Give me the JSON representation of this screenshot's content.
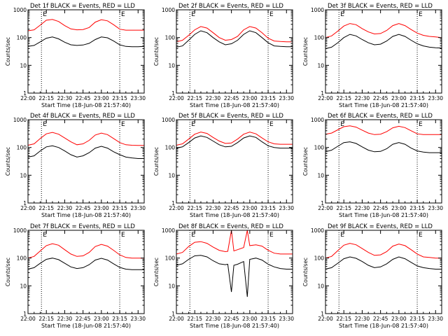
{
  "figure": {
    "xlabel": "Start Time (18-Jun-08 21:57:40)",
    "ylabel": "Counts/sec",
    "x_tick_labels": [
      "22:00",
      "22:15",
      "22:30",
      "22:45",
      "23:00",
      "23:15",
      "23:30"
    ],
    "y_tick_labels": [
      "1",
      "10",
      "100",
      "1000"
    ],
    "colors": {
      "events": "#000000",
      "lld": "#ff0000",
      "background": "#ffffff"
    }
  },
  "chart_data": [
    {
      "type": "line",
      "title": "Det 1f BLACK = Events, RED = LLD",
      "xlabel": "Start Time (18-Jun-08 21:57:40)",
      "ylabel": "Counts/sec",
      "x_unit": "minutes after 22:00",
      "xlim": [
        0,
        95
      ],
      "ylim": [
        1,
        1000
      ],
      "yscale": "log",
      "markers": [
        {
          "x": 11,
          "label": "E"
        },
        {
          "x": 75,
          "label": "E"
        }
      ],
      "series": [
        {
          "name": "Events",
          "color": "#000000",
          "x": [
            0,
            5,
            10,
            15,
            20,
            25,
            30,
            35,
            40,
            45,
            50,
            55,
            60,
            65,
            70,
            75,
            80,
            85,
            90,
            95
          ],
          "values": [
            48,
            52,
            70,
            95,
            105,
            90,
            68,
            55,
            52,
            54,
            62,
            85,
            105,
            98,
            75,
            55,
            48,
            47,
            47,
            48
          ]
        },
        {
          "name": "LLD",
          "color": "#ff0000",
          "x": [
            0,
            5,
            10,
            15,
            20,
            25,
            30,
            35,
            40,
            45,
            50,
            55,
            60,
            65,
            70,
            75,
            80,
            85,
            90,
            95
          ],
          "values": [
            175,
            190,
            280,
            420,
            450,
            380,
            270,
            205,
            190,
            195,
            230,
            360,
            440,
            400,
            290,
            200,
            185,
            185,
            185,
            185
          ]
        }
      ]
    },
    {
      "type": "line",
      "title": "Det 2f BLACK = Events, RED = LLD",
      "xlabel": "Start Time (18-Jun-08 21:57:40)",
      "ylabel": "Counts/sec",
      "x_unit": "minutes after 22:00",
      "xlim": [
        0,
        95
      ],
      "ylim": [
        1,
        1000
      ],
      "yscale": "log",
      "markers": [
        {
          "x": 11,
          "label": "E"
        },
        {
          "x": 75,
          "label": "E"
        }
      ],
      "series": [
        {
          "name": "Events",
          "color": "#000000",
          "x": [
            0,
            5,
            10,
            15,
            20,
            25,
            30,
            35,
            40,
            45,
            50,
            55,
            60,
            65,
            70,
            75,
            80,
            85,
            90,
            95
          ],
          "values": [
            45,
            50,
            80,
            130,
            175,
            150,
            100,
            70,
            55,
            60,
            80,
            130,
            175,
            150,
            100,
            65,
            50,
            48,
            47,
            47
          ]
        },
        {
          "name": "LLD",
          "color": "#ff0000",
          "x": [
            0,
            5,
            10,
            15,
            20,
            25,
            30,
            35,
            40,
            45,
            50,
            55,
            60,
            65,
            70,
            75,
            80,
            85,
            90,
            95
          ],
          "values": [
            70,
            80,
            120,
            190,
            250,
            220,
            150,
            100,
            80,
            85,
            110,
            190,
            250,
            220,
            150,
            95,
            75,
            72,
            70,
            70
          ]
        }
      ]
    },
    {
      "type": "line",
      "title": "Det 3f BLACK = Events, RED = LLD",
      "xlabel": "Start Time (18-Jun-08 21:57:40)",
      "ylabel": "Counts/sec",
      "x_unit": "minutes after 22:00",
      "xlim": [
        0,
        95
      ],
      "ylim": [
        1,
        1000
      ],
      "yscale": "log",
      "markers": [
        {
          "x": 11,
          "label": "E"
        },
        {
          "x": 75,
          "label": "E"
        }
      ],
      "series": [
        {
          "name": "Events",
          "color": "#000000",
          "x": [
            0,
            5,
            10,
            15,
            20,
            25,
            30,
            35,
            40,
            45,
            50,
            55,
            60,
            65,
            70,
            75,
            80,
            85,
            90,
            95
          ],
          "values": [
            40,
            45,
            65,
            100,
            130,
            115,
            85,
            65,
            55,
            58,
            75,
            110,
            130,
            110,
            80,
            60,
            50,
            45,
            43,
            42
          ]
        },
        {
          "name": "LLD",
          "color": "#ff0000",
          "x": [
            0,
            5,
            10,
            15,
            20,
            25,
            30,
            35,
            40,
            45,
            50,
            55,
            60,
            65,
            70,
            75,
            80,
            85,
            90,
            95
          ],
          "values": [
            100,
            115,
            170,
            260,
            320,
            290,
            210,
            160,
            135,
            140,
            180,
            270,
            320,
            270,
            195,
            145,
            120,
            110,
            105,
            100
          ]
        }
      ]
    },
    {
      "type": "line",
      "title": "Det 4f BLACK = Events, RED = LLD",
      "xlabel": "Start Time (18-Jun-08 21:57:40)",
      "ylabel": "Counts/sec",
      "x_unit": "minutes after 22:00",
      "xlim": [
        0,
        95
      ],
      "ylim": [
        1,
        1000
      ],
      "yscale": "log",
      "markers": [
        {
          "x": 11,
          "label": "E"
        },
        {
          "x": 75,
          "label": "E"
        }
      ],
      "series": [
        {
          "name": "Events",
          "color": "#000000",
          "x": [
            0,
            5,
            10,
            15,
            20,
            25,
            30,
            35,
            40,
            45,
            50,
            55,
            60,
            65,
            70,
            75,
            80,
            85,
            90,
            95
          ],
          "values": [
            45,
            50,
            75,
            105,
            115,
            100,
            75,
            55,
            45,
            50,
            65,
            95,
            110,
            95,
            70,
            55,
            45,
            42,
            40,
            40
          ]
        },
        {
          "name": "LLD",
          "color": "#ff0000",
          "x": [
            0,
            5,
            10,
            15,
            20,
            25,
            30,
            35,
            40,
            45,
            50,
            55,
            60,
            65,
            70,
            75,
            80,
            85,
            90,
            95
          ],
          "values": [
            120,
            135,
            210,
            310,
            350,
            300,
            220,
            160,
            125,
            135,
            180,
            280,
            330,
            290,
            210,
            150,
            125,
            120,
            118,
            118
          ]
        }
      ]
    },
    {
      "type": "line",
      "title": "Det 5f BLACK = Events, RED = LLD",
      "xlabel": "Start Time (18-Jun-08 21:57:40)",
      "ylabel": "Counts/sec",
      "x_unit": "minutes after 22:00",
      "xlim": [
        0,
        95
      ],
      "ylim": [
        1,
        1000
      ],
      "yscale": "log",
      "markers": [
        {
          "x": 11,
          "label": "E"
        },
        {
          "x": 75,
          "label": "E"
        }
      ],
      "series": [
        {
          "name": "Events",
          "color": "#000000",
          "x": [
            0,
            5,
            10,
            15,
            20,
            25,
            30,
            35,
            40,
            45,
            50,
            55,
            60,
            65,
            70,
            75,
            80,
            85,
            90,
            95
          ],
          "values": [
            95,
            105,
            150,
            220,
            260,
            230,
            170,
            125,
            105,
            110,
            150,
            220,
            260,
            230,
            160,
            115,
            100,
            95,
            95,
            95
          ]
        },
        {
          "name": "LLD",
          "color": "#ff0000",
          "x": [
            0,
            5,
            10,
            15,
            20,
            25,
            30,
            35,
            40,
            45,
            50,
            55,
            60,
            65,
            70,
            75,
            80,
            85,
            90,
            95
          ],
          "values": [
            120,
            135,
            200,
            300,
            360,
            320,
            230,
            170,
            140,
            145,
            200,
            300,
            360,
            310,
            220,
            160,
            135,
            130,
            130,
            130
          ]
        }
      ]
    },
    {
      "type": "line",
      "title": "Det 6f BLACK = Events, RED = LLD",
      "xlabel": "Start Time (18-Jun-08 21:57:40)",
      "ylabel": "Counts/sec",
      "x_unit": "minutes after 22:00",
      "xlim": [
        0,
        95
      ],
      "ylim": [
        1,
        1000
      ],
      "yscale": "log",
      "markers": [
        {
          "x": 11,
          "label": "E"
        },
        {
          "x": 75,
          "label": "E"
        }
      ],
      "series": [
        {
          "name": "Events",
          "color": "#000000",
          "x": [
            0,
            5,
            10,
            15,
            20,
            25,
            30,
            35,
            40,
            45,
            50,
            55,
            60,
            65,
            70,
            75,
            80,
            85,
            90,
            95
          ],
          "values": [
            70,
            80,
            110,
            150,
            160,
            140,
            105,
            80,
            70,
            72,
            90,
            130,
            150,
            130,
            95,
            75,
            68,
            65,
            65,
            65
          ]
        },
        {
          "name": "LLD",
          "color": "#ff0000",
          "x": [
            0,
            5,
            10,
            15,
            20,
            25,
            30,
            35,
            40,
            45,
            50,
            55,
            60,
            65,
            70,
            75,
            80,
            85,
            90,
            95
          ],
          "values": [
            300,
            330,
            430,
            560,
            600,
            540,
            420,
            330,
            290,
            300,
            370,
            510,
            580,
            520,
            400,
            310,
            290,
            290,
            290,
            290
          ]
        }
      ]
    },
    {
      "type": "line",
      "title": "Det 7f BLACK = Events, RED = LLD",
      "xlabel": "Start Time (18-Jun-08 21:57:40)",
      "ylabel": "Counts/sec",
      "x_unit": "minutes after 22:00",
      "xlim": [
        0,
        95
      ],
      "ylim": [
        1,
        1000
      ],
      "yscale": "log",
      "markers": [
        {
          "x": 11,
          "label": "E"
        },
        {
          "x": 75,
          "label": "E"
        }
      ],
      "series": [
        {
          "name": "Events",
          "color": "#000000",
          "x": [
            0,
            5,
            10,
            15,
            20,
            25,
            30,
            35,
            40,
            45,
            50,
            55,
            60,
            65,
            70,
            75,
            80,
            85,
            90,
            95
          ],
          "values": [
            40,
            45,
            65,
            90,
            100,
            88,
            65,
            48,
            42,
            45,
            58,
            85,
            98,
            85,
            62,
            46,
            40,
            38,
            38,
            38
          ]
        },
        {
          "name": "LLD",
          "color": "#ff0000",
          "x": [
            0,
            5,
            10,
            15,
            20,
            25,
            30,
            35,
            40,
            45,
            50,
            55,
            60,
            65,
            70,
            75,
            80,
            85,
            90,
            95
          ],
          "values": [
            100,
            115,
            180,
            280,
            330,
            290,
            200,
            140,
            115,
            120,
            160,
            260,
            310,
            270,
            190,
            130,
            105,
            100,
            100,
            100
          ]
        }
      ]
    },
    {
      "type": "line",
      "title": "Det 8f BLACK = Events, RED = LLD",
      "xlabel": "Start Time (18-Jun-08 21:57:40)",
      "ylabel": "Counts/sec",
      "x_unit": "minutes after 22:00",
      "xlim": [
        0,
        95
      ],
      "ylim": [
        1,
        1000
      ],
      "yscale": "log",
      "markers": [
        {
          "x": 11,
          "label": "E"
        },
        {
          "x": 75,
          "label": "E"
        }
      ],
      "series": [
        {
          "name": "Events",
          "color": "#000000",
          "x": [
            0,
            5,
            10,
            15,
            20,
            25,
            30,
            35,
            40,
            42,
            45,
            47,
            50,
            55,
            58,
            60,
            65,
            70,
            75,
            80,
            85,
            90,
            95
          ],
          "values": [
            55,
            62,
            90,
            120,
            125,
            110,
            80,
            62,
            58,
            60,
            6,
            55,
            60,
            75,
            4,
            90,
            100,
            85,
            60,
            48,
            42,
            40,
            40
          ]
        },
        {
          "name": "LLD",
          "color": "#ff0000",
          "x": [
            0,
            5,
            10,
            15,
            20,
            25,
            30,
            35,
            40,
            42,
            45,
            47,
            50,
            55,
            58,
            60,
            65,
            70,
            75,
            80,
            85,
            90,
            95
          ],
          "values": [
            140,
            160,
            260,
            370,
            390,
            340,
            250,
            190,
            170,
            175,
            1000,
            180,
            200,
            240,
            1000,
            280,
            300,
            270,
            190,
            150,
            140,
            140,
            140
          ]
        }
      ]
    },
    {
      "type": "line",
      "title": "Det 9f BLACK = Events, RED = LLD",
      "xlabel": "Start Time (18-Jun-08 21:57:40)",
      "ylabel": "Counts/sec",
      "x_unit": "minutes after 22:00",
      "xlim": [
        0,
        95
      ],
      "ylim": [
        1,
        1000
      ],
      "yscale": "log",
      "markers": [
        {
          "x": 11,
          "label": "E"
        },
        {
          "x": 75,
          "label": "E"
        }
      ],
      "series": [
        {
          "name": "Events",
          "color": "#000000",
          "x": [
            0,
            5,
            10,
            15,
            20,
            25,
            30,
            35,
            40,
            45,
            50,
            55,
            60,
            65,
            70,
            75,
            80,
            85,
            90,
            95
          ],
          "values": [
            40,
            45,
            65,
            95,
            110,
            98,
            75,
            55,
            45,
            48,
            62,
            90,
            110,
            95,
            70,
            52,
            45,
            42,
            40,
            40
          ]
        },
        {
          "name": "LLD",
          "color": "#ff0000",
          "x": [
            0,
            5,
            10,
            15,
            20,
            25,
            30,
            35,
            40,
            45,
            50,
            55,
            60,
            65,
            70,
            75,
            80,
            85,
            90,
            95
          ],
          "values": [
            100,
            115,
            185,
            290,
            340,
            300,
            220,
            160,
            125,
            130,
            170,
            270,
            320,
            280,
            200,
            140,
            110,
            105,
            100,
            100
          ]
        }
      ]
    }
  ]
}
